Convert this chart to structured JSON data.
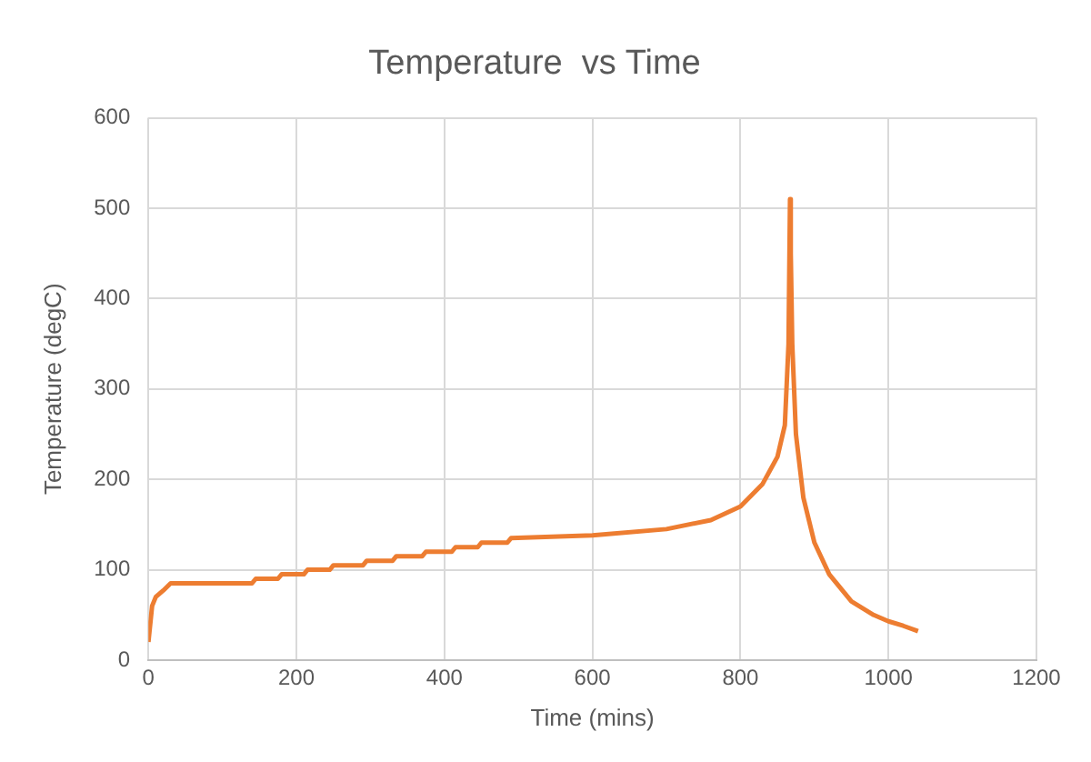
{
  "chart_data": {
    "type": "line",
    "title": "Temperature  vs Time",
    "xlabel": "Time (mins)",
    "ylabel": "Temperature (degC)",
    "series": [
      {
        "color": "#ed7d31",
        "x": [
          0,
          5,
          10,
          20,
          30,
          140,
          145,
          175,
          180,
          210,
          215,
          245,
          250,
          290,
          295,
          330,
          335,
          370,
          375,
          410,
          415,
          445,
          450,
          485,
          490,
          600,
          700,
          760,
          800,
          830,
          850,
          860,
          865,
          867,
          868,
          870,
          875,
          885,
          900,
          920,
          950,
          980,
          1000,
          1020,
          1040
        ],
        "values": [
          20,
          60,
          70,
          77,
          85,
          85,
          90,
          90,
          95,
          95,
          100,
          100,
          105,
          105,
          110,
          110,
          115,
          115,
          120,
          120,
          125,
          125,
          130,
          130,
          135,
          138,
          145,
          155,
          170,
          195,
          225,
          260,
          350,
          510,
          450,
          350,
          250,
          180,
          130,
          95,
          65,
          50,
          43,
          38,
          32
        ]
      }
    ],
    "xlim": [
      0,
      1200
    ],
    "xticks": [
      0,
      200,
      400,
      600,
      800,
      1000,
      1200
    ],
    "ylim": [
      0,
      600
    ],
    "yticks": [
      0,
      100,
      200,
      300,
      400,
      500,
      600
    ],
    "grid": true,
    "marker": "none",
    "line_style": "solid",
    "legend": false
  }
}
